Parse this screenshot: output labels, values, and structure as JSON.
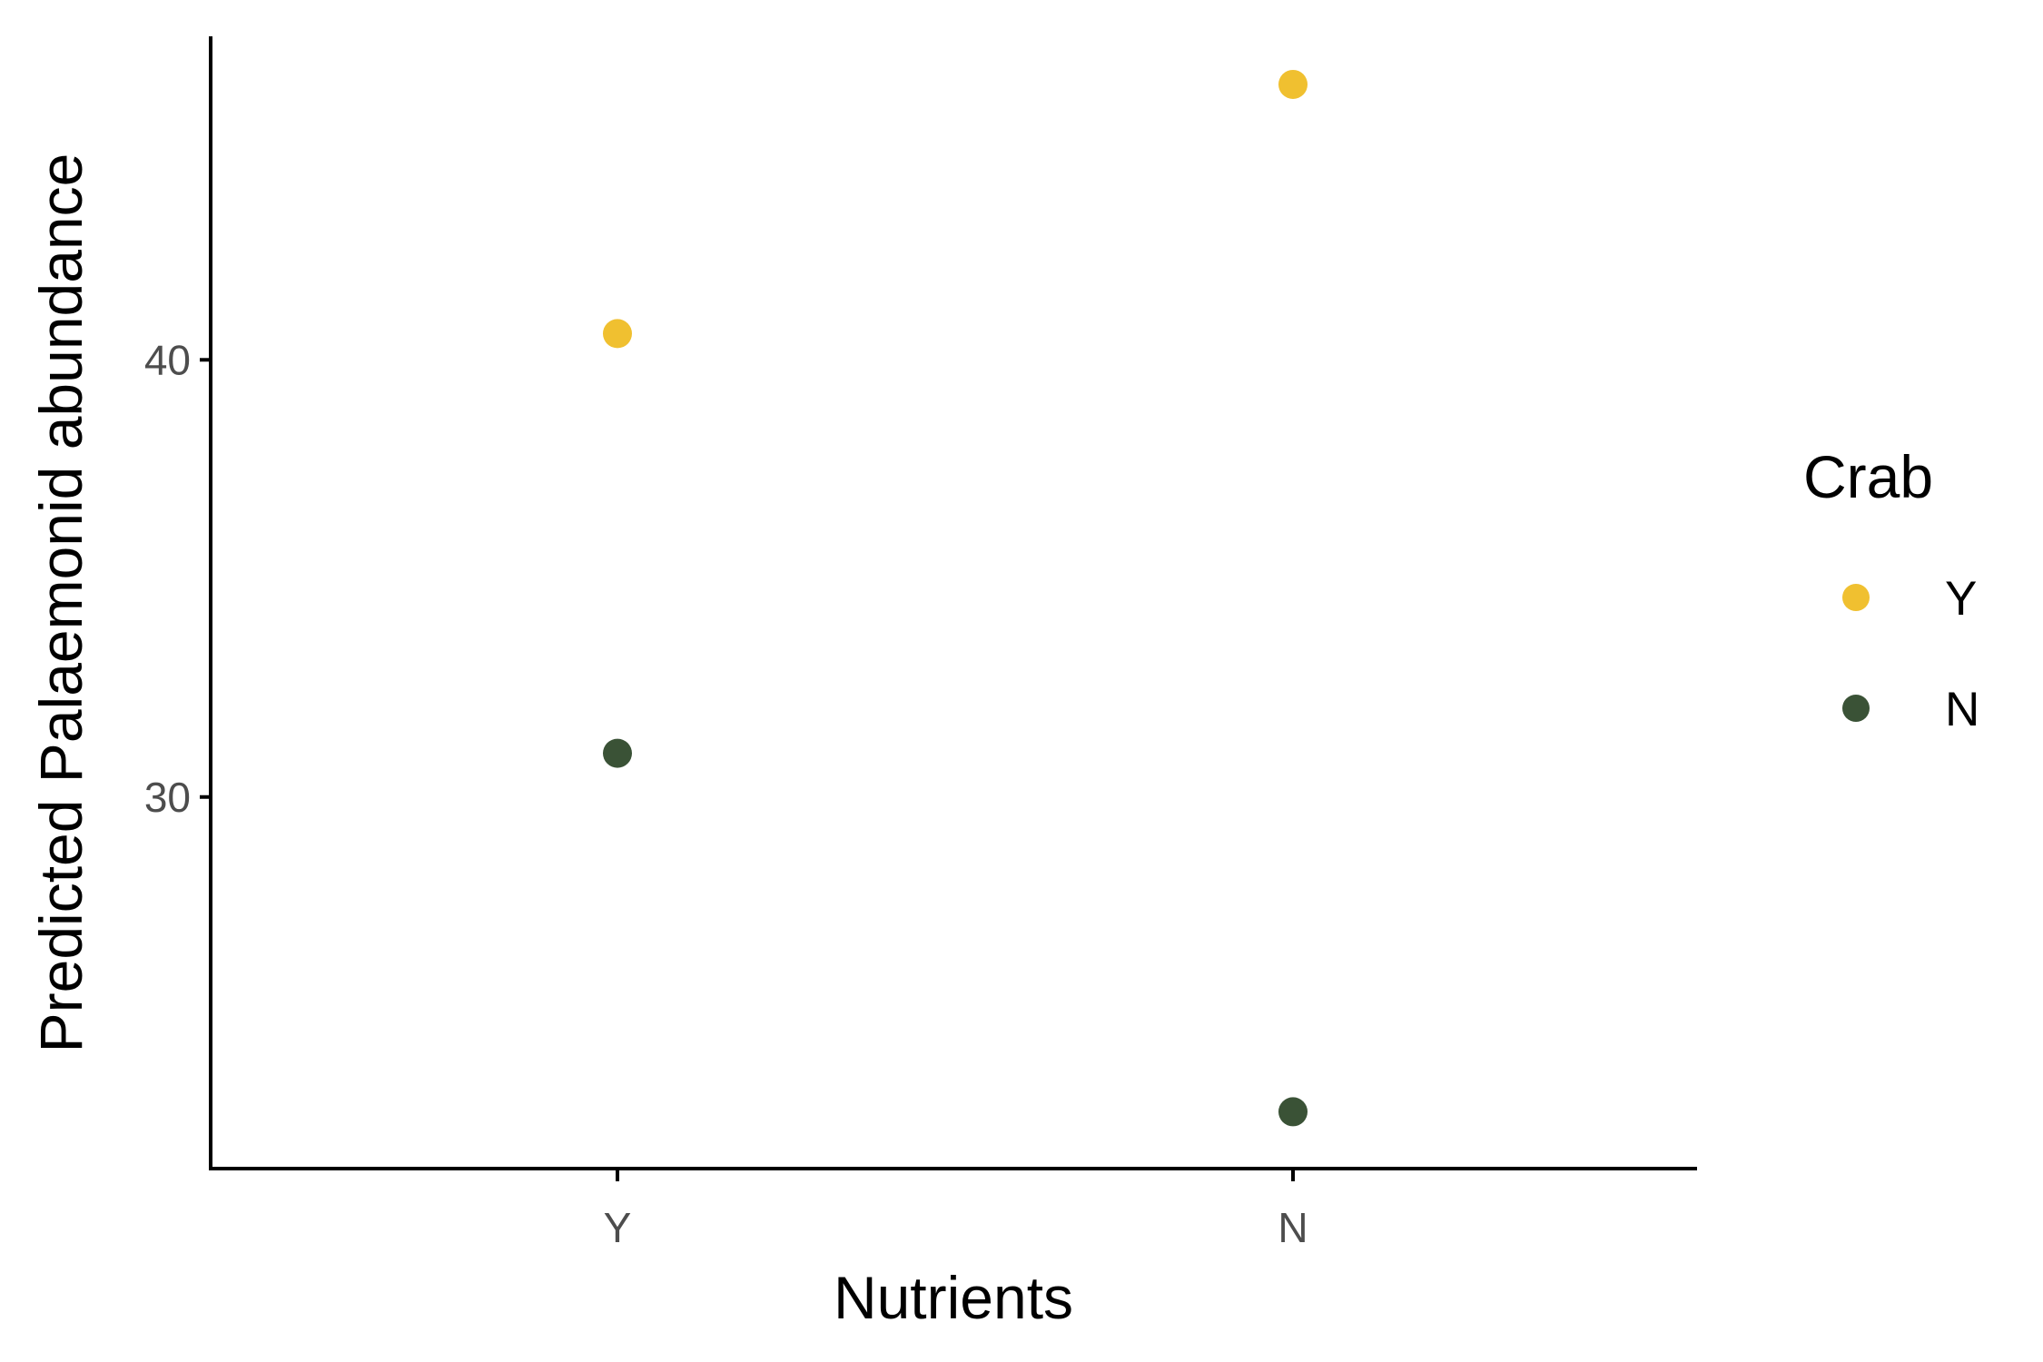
{
  "chart_data": {
    "type": "scatter",
    "xlabel": "Nutrients",
    "ylabel": "Predicted Palaemonid abundance",
    "categories": [
      "Y",
      "N"
    ],
    "y_ticks": [
      30,
      40
    ],
    "ylim": [
      21.5,
      47.4
    ],
    "grid": false,
    "legend": {
      "title": "Crab",
      "placement": "right",
      "entries": [
        {
          "label": "Y",
          "color": "#F0C030"
        },
        {
          "label": "N",
          "color": "#3A5236"
        }
      ]
    },
    "series": [
      {
        "name": "Y",
        "color": "#F0C030",
        "values": [
          40.6,
          46.3
        ]
      },
      {
        "name": "N",
        "color": "#3A5236",
        "values": [
          31.0,
          22.8
        ]
      }
    ]
  }
}
